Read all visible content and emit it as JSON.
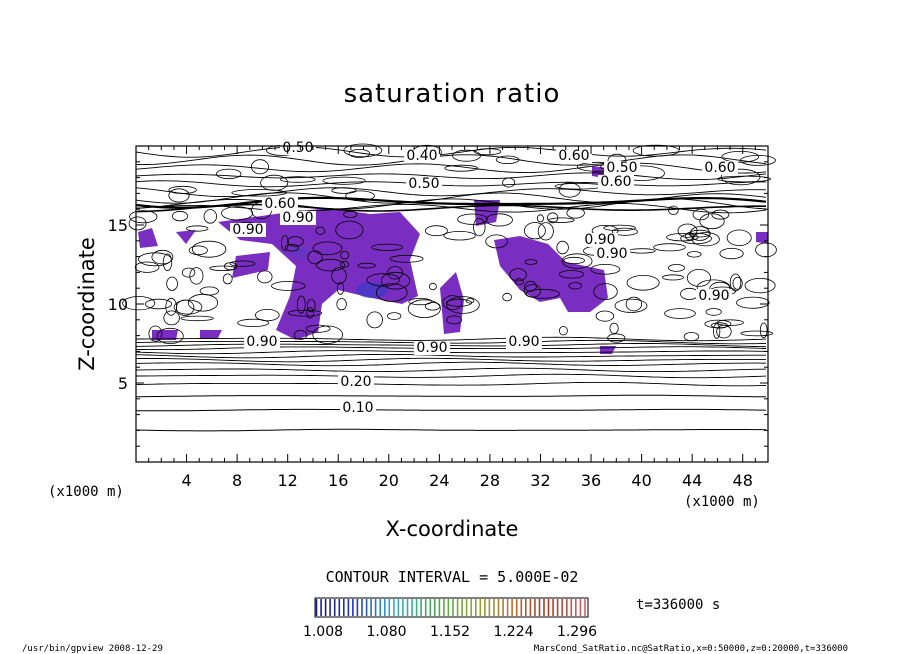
{
  "chart_data": {
    "type": "contour",
    "title": "saturation ratio",
    "xlabel": "X-coordinate",
    "ylabel": "Z-coordinate",
    "x_unit": "(x1000 m)",
    "z_unit": "(x1000 m)",
    "xlim": [
      0,
      50
    ],
    "ylim": [
      0,
      20
    ],
    "x_ticks": [
      "4",
      "8",
      "12",
      "16",
      "20",
      "24",
      "28",
      "32",
      "36",
      "40",
      "44",
      "48"
    ],
    "y_ticks": [
      "5",
      "10",
      "15"
    ],
    "contour_interval_text": "CONTOUR INTERVAL = 5.000E-02",
    "time_text": "t=336000 s",
    "colorbar": {
      "tick_labels": [
        "1.008",
        "1.080",
        "1.152",
        "1.224",
        "1.296"
      ],
      "colors": [
        "#1a1a7a",
        "#2233cc",
        "#33aacc",
        "#44aa55",
        "#88aa33",
        "#bb7733",
        "#aa3322",
        "#cc6666"
      ]
    },
    "contour_labels": [
      "0.50",
      "0.40",
      "0.50",
      "0.60",
      "0.60",
      "0.50",
      "0.60",
      "0.60",
      "0.90",
      "0.90",
      "0.90",
      "0.90",
      "0.90",
      "0.90",
      "0.90",
      "0.90",
      "0.20",
      "0.10"
    ],
    "fill_color": "#7a2ec1",
    "footer_left": "/usr/bin/gpview   2008-12-29",
    "footer_right": "MarsCond_SatRatio.nc@SatRatio,x=0:50000,z=0:20000,t=336000"
  }
}
